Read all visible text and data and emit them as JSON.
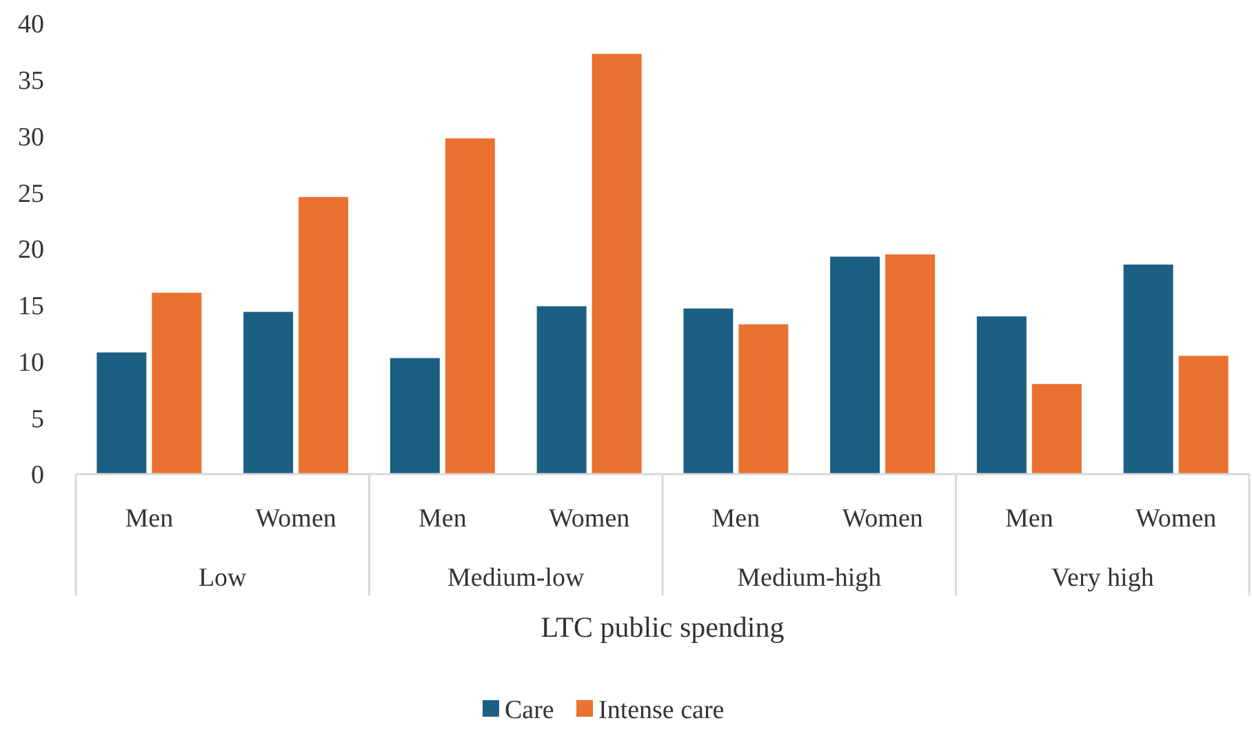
{
  "chart_data": {
    "type": "bar",
    "categories": [
      "Men",
      "Women",
      "Men",
      "Women",
      "Men",
      "Women",
      "Men",
      "Women"
    ],
    "series": [
      {
        "name": "Care",
        "color": "#1b6083",
        "values": [
          10.8,
          14.4,
          10.3,
          14.9,
          14.7,
          19.3,
          14.0,
          18.6
        ]
      },
      {
        "name": "Intense care",
        "color": "#eb7131",
        "values": [
          16.1,
          24.6,
          29.8,
          37.3,
          13.3,
          19.5,
          8.0,
          10.5
        ]
      }
    ],
    "annotations": [
      "Low",
      "Medium-low",
      "Medium-high",
      "Very high"
    ],
    "xlabel": "LTC public spending",
    "ylim": [
      0,
      40
    ],
    "yticks": [
      0,
      5,
      10,
      15,
      20,
      25,
      30,
      35,
      40
    ],
    "grid": false,
    "legend": "bottom"
  }
}
